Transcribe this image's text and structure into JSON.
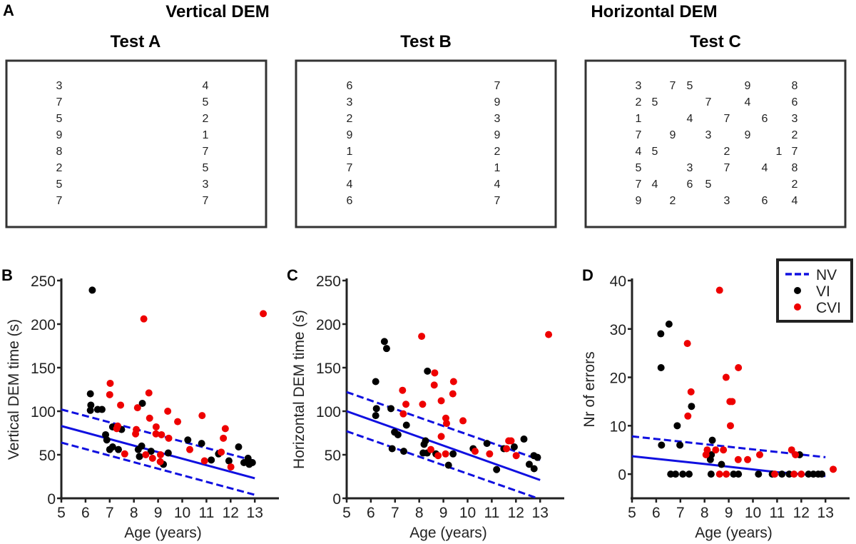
{
  "figure": {
    "panel_a_label": "A",
    "vertical_title": "Vertical DEM",
    "horizontal_title": "Horizontal DEM",
    "tests": [
      {
        "title": "Test A",
        "columns": [
          [
            "3",
            "7",
            "5",
            "9",
            "8",
            "2",
            "5",
            "7"
          ],
          [
            "4",
            "5",
            "2",
            "1",
            "7",
            "5",
            "3",
            "7"
          ]
        ]
      },
      {
        "title": "Test B",
        "columns": [
          [
            "6",
            "3",
            "2",
            "9",
            "1",
            "7",
            "4",
            "6"
          ],
          [
            "7",
            "9",
            "3",
            "9",
            "2",
            "1",
            "4",
            "7"
          ]
        ]
      },
      {
        "title": "Test C",
        "grid": [
          [
            "3",
            "",
            "7",
            "5",
            "",
            "",
            "9",
            "",
            "",
            "8"
          ],
          [
            "2",
            "5",
            "",
            "",
            "7",
            "",
            "4",
            "",
            "",
            "6"
          ],
          [
            "1",
            "",
            "",
            "4",
            "",
            "7",
            "",
            "6",
            "",
            "3"
          ],
          [
            "7",
            "",
            "9",
            "",
            "3",
            "",
            "9",
            "",
            "",
            "2"
          ],
          [
            "4",
            "5",
            "",
            "",
            "",
            "2",
            "",
            "",
            "1",
            "7"
          ],
          [
            "5",
            "",
            "",
            "3",
            "",
            "7",
            "",
            "4",
            "",
            "8"
          ],
          [
            "7",
            "4",
            "",
            "6",
            "5",
            "",
            "",
            "",
            "",
            "2"
          ],
          [
            "9",
            "",
            "2",
            "",
            "",
            "3",
            "",
            "6",
            "",
            "4"
          ]
        ]
      }
    ]
  },
  "colors": {
    "NV": "#1010e0",
    "VI": "#000000",
    "CVI": "#ee0000"
  },
  "legend": {
    "placement": "top-right of panel D",
    "entries": [
      "NV",
      "VI",
      "CVI"
    ]
  },
  "chart_data": [
    {
      "panel": "B",
      "type": "scatter",
      "xlabel": "Age (years)",
      "ylabel": "Vertical DEM time (s)",
      "xlim": [
        5,
        14
      ],
      "ylim": [
        0,
        250
      ],
      "xticks": [
        "5",
        "6",
        "7",
        "8",
        "9",
        "10",
        "11",
        "12",
        "13"
      ],
      "yticks": [
        "0",
        "50",
        "100",
        "150",
        "200",
        "250"
      ],
      "series": [
        {
          "name": "VI",
          "points": [
            [
              6.28,
              239
            ],
            [
              6.2,
              120
            ],
            [
              6.22,
              107
            ],
            [
              6.2,
              101
            ],
            [
              6.5,
              102
            ],
            [
              6.68,
              102
            ],
            [
              6.83,
              73
            ],
            [
              6.88,
              67
            ],
            [
              7.0,
              56
            ],
            [
              7.12,
              59
            ],
            [
              7.12,
              82
            ],
            [
              7.36,
              56
            ],
            [
              7.49,
              79
            ],
            [
              8.35,
              109
            ],
            [
              8.18,
              56
            ],
            [
              8.32,
              60
            ],
            [
              8.23,
              48
            ],
            [
              8.71,
              54
            ],
            [
              9.22,
              39
            ],
            [
              9.42,
              52
            ],
            [
              10.23,
              67
            ],
            [
              10.8,
              63
            ],
            [
              11.2,
              44
            ],
            [
              11.5,
              51
            ],
            [
              11.93,
              43
            ],
            [
              12.33,
              59
            ],
            [
              12.55,
              41
            ],
            [
              12.72,
              46
            ],
            [
              12.77,
              39
            ],
            [
              12.9,
              41
            ]
          ]
        },
        {
          "name": "CVI",
          "points": [
            [
              8.41,
              206
            ],
            [
              13.35,
              212
            ],
            [
              7.02,
              132
            ],
            [
              7.0,
              119
            ],
            [
              7.45,
              107
            ],
            [
              8.15,
              104
            ],
            [
              8.62,
              121
            ],
            [
              8.65,
              92
            ],
            [
              9.4,
              100
            ],
            [
              9.81,
              88
            ],
            [
              10.82,
              95
            ],
            [
              11.78,
              80
            ],
            [
              11.7,
              69
            ],
            [
              11.61,
              53
            ],
            [
              12.01,
              36
            ],
            [
              10.92,
              43
            ],
            [
              10.31,
              56
            ],
            [
              9.44,
              69
            ],
            [
              9.14,
              73
            ],
            [
              8.92,
              82
            ],
            [
              8.91,
              74
            ],
            [
              9.1,
              50
            ],
            [
              9.09,
              42
            ],
            [
              8.77,
              46
            ],
            [
              8.49,
              50
            ],
            [
              8.1,
              79
            ],
            [
              8.07,
              74
            ],
            [
              7.62,
              51
            ],
            [
              7.33,
              83
            ],
            [
              7.29,
              80
            ]
          ]
        }
      ],
      "nv_fit": [
        [
          5,
          83
        ],
        [
          13,
          23
        ]
      ],
      "nv_upper": [
        [
          5,
          102
        ],
        [
          13,
          43
        ]
      ],
      "nv_lower": [
        [
          5,
          64
        ],
        [
          13,
          4
        ]
      ]
    },
    {
      "panel": "C",
      "type": "scatter",
      "xlabel": "Age (years)",
      "ylabel": "Horizontal DEM time (s)",
      "xlim": [
        5,
        14
      ],
      "ylim": [
        0,
        250
      ],
      "xticks": [
        "5",
        "6",
        "7",
        "8",
        "9",
        "10",
        "11",
        "12",
        "13"
      ],
      "yticks": [
        "0",
        "50",
        "100",
        "150",
        "200",
        "250"
      ],
      "series": [
        {
          "name": "VI",
          "points": [
            [
              6.56,
              180
            ],
            [
              6.65,
              172
            ],
            [
              6.2,
              134
            ],
            [
              6.23,
              103
            ],
            [
              6.2,
              95
            ],
            [
              6.83,
              103
            ],
            [
              6.98,
              76
            ],
            [
              7.12,
              73
            ],
            [
              6.88,
              57
            ],
            [
              7.36,
              54
            ],
            [
              7.47,
              84
            ],
            [
              8.34,
              146
            ],
            [
              8.26,
              66
            ],
            [
              8.2,
              62
            ],
            [
              8.16,
              52
            ],
            [
              8.33,
              52
            ],
            [
              8.69,
              51
            ],
            [
              9.21,
              38
            ],
            [
              9.4,
              51
            ],
            [
              10.23,
              57
            ],
            [
              10.8,
              63
            ],
            [
              11.2,
              33
            ],
            [
              11.5,
              57
            ],
            [
              11.93,
              59
            ],
            [
              12.33,
              68
            ],
            [
              12.55,
              39
            ],
            [
              12.75,
              34
            ],
            [
              12.74,
              49
            ],
            [
              12.89,
              47
            ]
          ]
        },
        {
          "name": "CVI",
          "points": [
            [
              8.1,
              186
            ],
            [
              13.35,
              188
            ],
            [
              7.31,
              124
            ],
            [
              7.45,
              108
            ],
            [
              7.34,
              97
            ],
            [
              8.14,
              108
            ],
            [
              8.64,
              144
            ],
            [
              8.62,
              130
            ],
            [
              9.42,
              134
            ],
            [
              9.39,
              120
            ],
            [
              8.91,
              112
            ],
            [
              9.1,
              92
            ],
            [
              9.13,
              86
            ],
            [
              9.81,
              89
            ],
            [
              8.91,
              71
            ],
            [
              8.48,
              56
            ],
            [
              8.78,
              49
            ],
            [
              9.09,
              51
            ],
            [
              10.31,
              54
            ],
            [
              10.91,
              51
            ],
            [
              11.61,
              57
            ],
            [
              11.7,
              66
            ],
            [
              11.8,
              66
            ],
            [
              12.01,
              49
            ]
          ]
        }
      ],
      "nv_fit": [
        [
          5,
          100
        ],
        [
          13,
          21
        ]
      ],
      "nv_upper": [
        [
          5,
          122
        ],
        [
          13,
          44
        ]
      ],
      "nv_lower": [
        [
          5,
          77
        ],
        [
          12.9,
          0
        ]
      ]
    },
    {
      "panel": "D",
      "type": "scatter",
      "xlabel": "Age (years)",
      "ylabel": "Nr of errors",
      "xlim": [
        5,
        14
      ],
      "ylim": [
        -5,
        40
      ],
      "xticks": [
        "5",
        "6",
        "7",
        "8",
        "9",
        "10",
        "11",
        "12",
        "13"
      ],
      "yticks": [
        "0",
        "10",
        "20",
        "30",
        "40"
      ],
      "series": [
        {
          "name": "VI",
          "points": [
            [
              6.19,
              29
            ],
            [
              6.53,
              31
            ],
            [
              6.2,
              22
            ],
            [
              6.22,
              6
            ],
            [
              6.87,
              10
            ],
            [
              6.98,
              6
            ],
            [
              7.46,
              14
            ],
            [
              8.32,
              7
            ],
            [
              8.28,
              4
            ],
            [
              8.24,
              3
            ],
            [
              8.7,
              2
            ],
            [
              11.93,
              4
            ],
            [
              6.6,
              0
            ],
            [
              6.8,
              0
            ],
            [
              7.1,
              0
            ],
            [
              7.36,
              0
            ],
            [
              8.27,
              0
            ],
            [
              9.2,
              0
            ],
            [
              9.4,
              0
            ],
            [
              10.23,
              0
            ],
            [
              10.8,
              0
            ],
            [
              11.2,
              0
            ],
            [
              11.5,
              0
            ],
            [
              12.3,
              0
            ],
            [
              12.5,
              0
            ],
            [
              12.7,
              0
            ],
            [
              12.85,
              0
            ]
          ]
        },
        {
          "name": "CVI",
          "points": [
            [
              8.62,
              38
            ],
            [
              7.29,
              27
            ],
            [
              9.4,
              22
            ],
            [
              8.89,
              20
            ],
            [
              9.05,
              15
            ],
            [
              9.14,
              15
            ],
            [
              7.44,
              17
            ],
            [
              7.31,
              12
            ],
            [
              9.07,
              10
            ],
            [
              8.11,
              5
            ],
            [
              8.06,
              4
            ],
            [
              8.46,
              5
            ],
            [
              8.78,
              5
            ],
            [
              9.39,
              3
            ],
            [
              9.78,
              3
            ],
            [
              10.28,
              4
            ],
            [
              11.6,
              5
            ],
            [
              11.76,
              4
            ],
            [
              13.32,
              1
            ],
            [
              8.62,
              0
            ],
            [
              8.9,
              0
            ],
            [
              10.9,
              0
            ],
            [
              11.7,
              0
            ],
            [
              12.0,
              0
            ]
          ]
        }
      ],
      "nv_fit": [
        [
          5,
          3.7
        ],
        [
          8,
          2.1
        ],
        [
          11,
          0.4
        ],
        [
          13,
          -0.4
        ]
      ],
      "nv_upper": [
        [
          5,
          7.8
        ],
        [
          13,
          3.5
        ]
      ]
    }
  ]
}
